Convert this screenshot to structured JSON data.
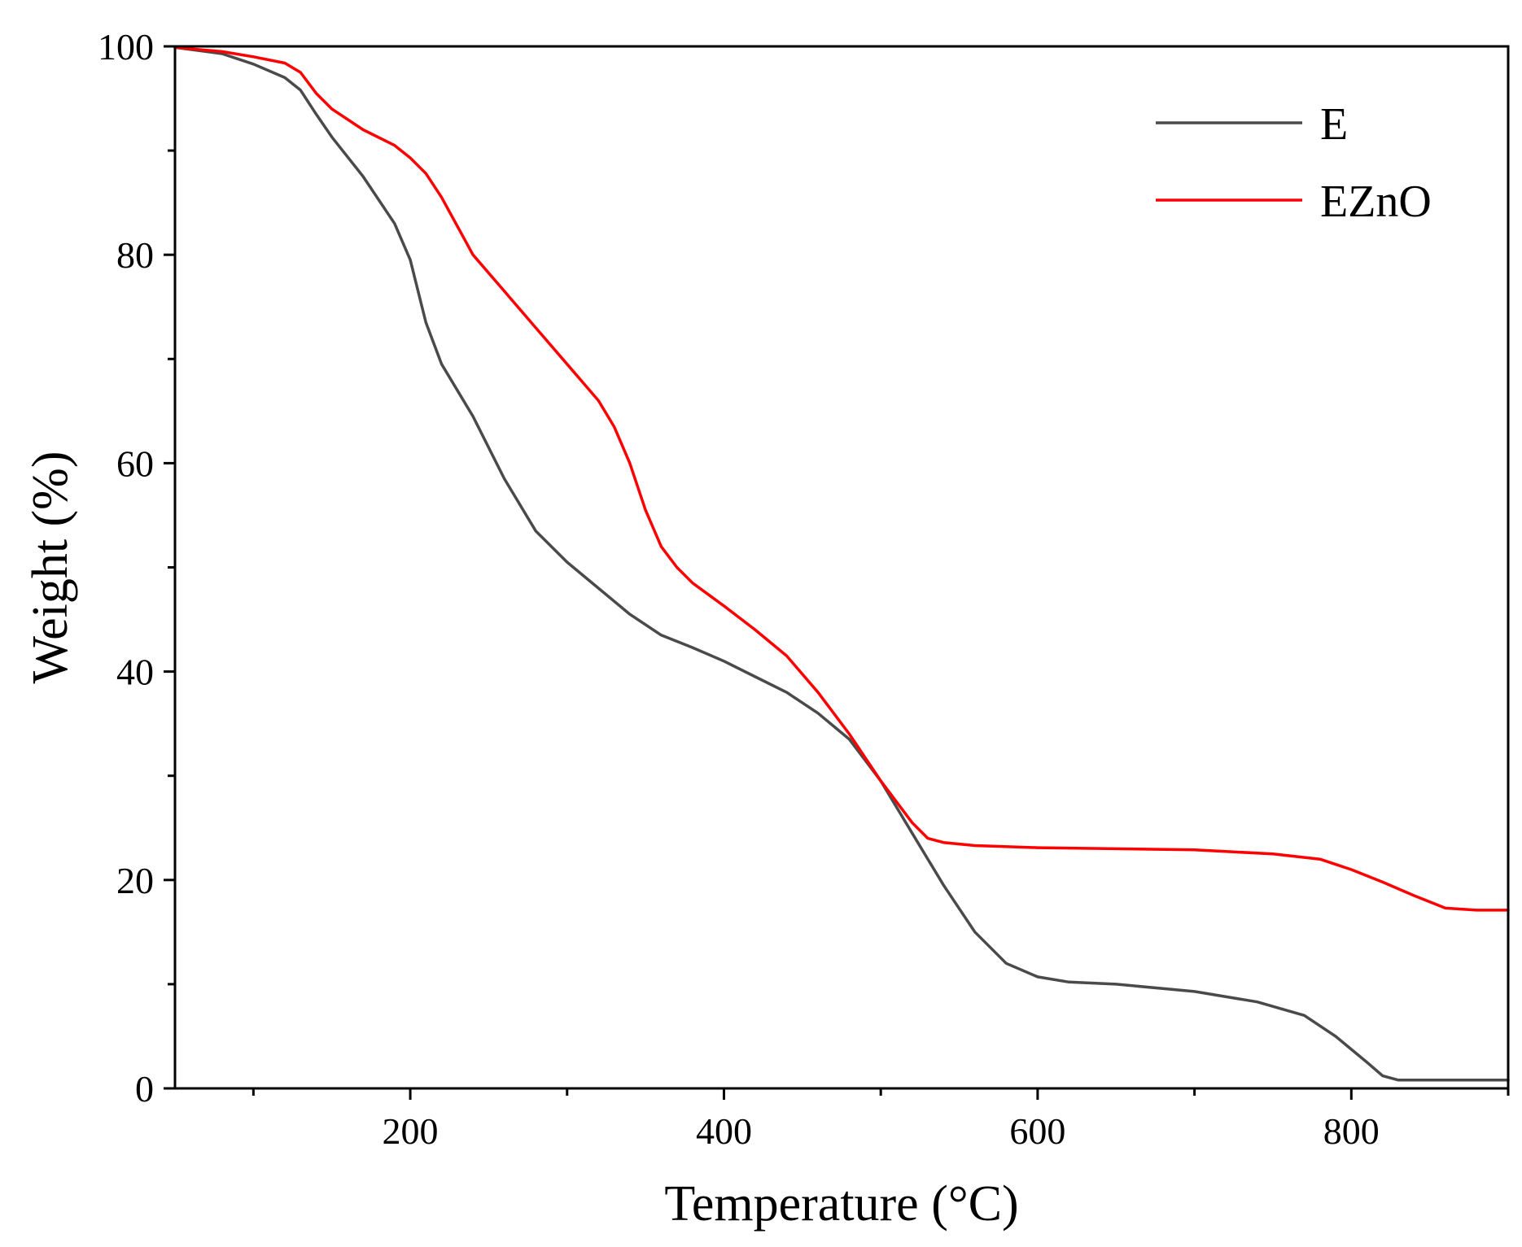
{
  "chart_data": {
    "type": "line",
    "title": "",
    "xlabel": "Temperature (°C)",
    "ylabel": "Weight (%)",
    "xlim": [
      50,
      900
    ],
    "ylim": [
      0,
      100
    ],
    "x_ticks": [
      200,
      400,
      600,
      800
    ],
    "x_minor_ticks": [
      100,
      300,
      500,
      700,
      900
    ],
    "y_ticks": [
      0,
      20,
      40,
      60,
      80,
      100
    ],
    "y_minor_ticks": [
      10,
      30,
      50,
      70,
      90
    ],
    "legend_position": "top-right",
    "grid": false,
    "series": [
      {
        "name": "E",
        "color": "#4a4a4a",
        "x": [
          50,
          80,
          100,
          120,
          130,
          140,
          150,
          170,
          190,
          200,
          210,
          220,
          240,
          260,
          280,
          300,
          320,
          340,
          360,
          380,
          400,
          420,
          440,
          460,
          480,
          500,
          520,
          540,
          560,
          580,
          600,
          620,
          650,
          700,
          740,
          770,
          790,
          810,
          820,
          830,
          850,
          900
        ],
        "y": [
          99.9,
          99.3,
          98.3,
          97.0,
          95.8,
          93.5,
          91.3,
          87.5,
          83.0,
          79.5,
          73.5,
          69.5,
          64.5,
          58.5,
          53.5,
          50.5,
          48.0,
          45.5,
          43.5,
          42.3,
          41.0,
          39.5,
          38.0,
          36.0,
          33.5,
          29.5,
          24.5,
          19.5,
          15.0,
          12.0,
          10.7,
          10.2,
          10.0,
          9.3,
          8.3,
          7.0,
          5.0,
          2.5,
          1.2,
          0.8,
          0.8,
          0.8
        ]
      },
      {
        "name": "EZnO",
        "color": "#ff0000",
        "x": [
          50,
          80,
          100,
          120,
          130,
          140,
          150,
          170,
          190,
          200,
          210,
          220,
          240,
          260,
          280,
          300,
          320,
          330,
          340,
          350,
          360,
          370,
          380,
          400,
          420,
          440,
          460,
          480,
          500,
          520,
          530,
          540,
          560,
          600,
          650,
          700,
          750,
          780,
          800,
          820,
          840,
          860,
          880,
          900
        ],
        "y": [
          99.9,
          99.5,
          99.0,
          98.4,
          97.5,
          95.5,
          94.0,
          92.0,
          90.5,
          89.3,
          87.8,
          85.5,
          80.0,
          76.5,
          73.0,
          69.5,
          66.0,
          63.5,
          60.0,
          55.5,
          52.0,
          50.0,
          48.5,
          46.3,
          44.0,
          41.5,
          38.0,
          34.0,
          29.5,
          25.5,
          24.0,
          23.6,
          23.3,
          23.1,
          23.0,
          22.9,
          22.5,
          22.0,
          21.0,
          19.8,
          18.5,
          17.3,
          17.1,
          17.1
        ]
      }
    ]
  }
}
